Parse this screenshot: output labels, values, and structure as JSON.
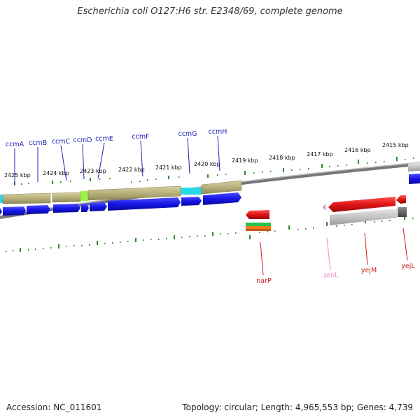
{
  "header": {
    "title": "Escherichia coli O127:H6 str. E2348/69, complete genome"
  },
  "footer": {
    "accession": "Accession: NC_011601",
    "topology": "Topology: circular; Length: 4,965,553 bp; Genes: 4,739"
  },
  "scale": {
    "labels": [
      "2425 kbp",
      "2424 kbp",
      "2423 kbp",
      "2422 kbp",
      "2421 kbp",
      "2420 kbp",
      "2419 kbp",
      "2418 kbp",
      "2417 kbp",
      "2416 kbp",
      "2415 kbp"
    ]
  },
  "genes_top": [
    "ccmA",
    "ccmB",
    "ccmC",
    "ccmD",
    "ccmE",
    "ccmF",
    "ccmG",
    "ccmH"
  ],
  "genes_bottom": [
    "narP",
    "proL",
    "yejM",
    "yejL"
  ],
  "colors": {
    "label_top": "#1f1fb8",
    "label_bottom": "#cc1b1b",
    "label_trna": "#f08cbf",
    "cds_forward": "#1515e6",
    "cds_reverse": "#e11414",
    "gene_block": "#b8b07c",
    "scale_tick": "#2e8b2e",
    "backbone": "#888888"
  }
}
